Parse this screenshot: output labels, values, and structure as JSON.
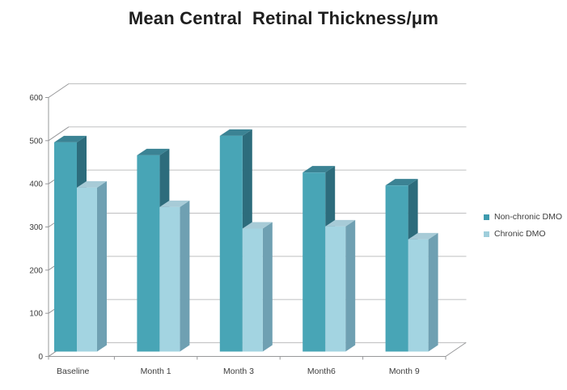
{
  "title": "Mean Central  Retinal Thickness/μm",
  "legend": {
    "items": [
      {
        "label": "Non-chronic DMO",
        "color": "#3E9BAE"
      },
      {
        "label": "Chronic DMO",
        "color": "#9FCEDB"
      }
    ]
  },
  "chart_data": {
    "type": "bar",
    "subtype": "3d-clustered-column",
    "title": "Mean Central  Retinal Thickness/μm",
    "xlabel": "",
    "ylabel": "",
    "categories": [
      "Baseline",
      "Month 1",
      "Month 3",
      "Month6",
      "Month 9"
    ],
    "series": [
      {
        "name": "Non-chronic DMO",
        "values": [
          485,
          455,
          500,
          415,
          385
        ],
        "colors": {
          "front": "#48A5B6",
          "top": "#3B8394",
          "side": "#2D6C7C"
        }
      },
      {
        "name": "Chronic DMO",
        "values": [
          380,
          335,
          285,
          290,
          260
        ],
        "colors": {
          "front": "#A3D4E1",
          "top": "#A7CBD7",
          "side": "#6FA0B2"
        }
      }
    ],
    "y_axis": {
      "min": 0,
      "max": 600,
      "step": 100,
      "tick_labels": [
        "0",
        "100",
        "200",
        "300",
        "400",
        "500",
        "600"
      ]
    },
    "ylim": [
      0,
      600
    ],
    "grid": true,
    "legend_position": "right"
  },
  "colors": {
    "background": "#FFFFFF",
    "gridline": "#C6C7C8",
    "axis": "#97989A",
    "tick_text": "#3E3E3E",
    "title_text": "#1E1E1E"
  }
}
